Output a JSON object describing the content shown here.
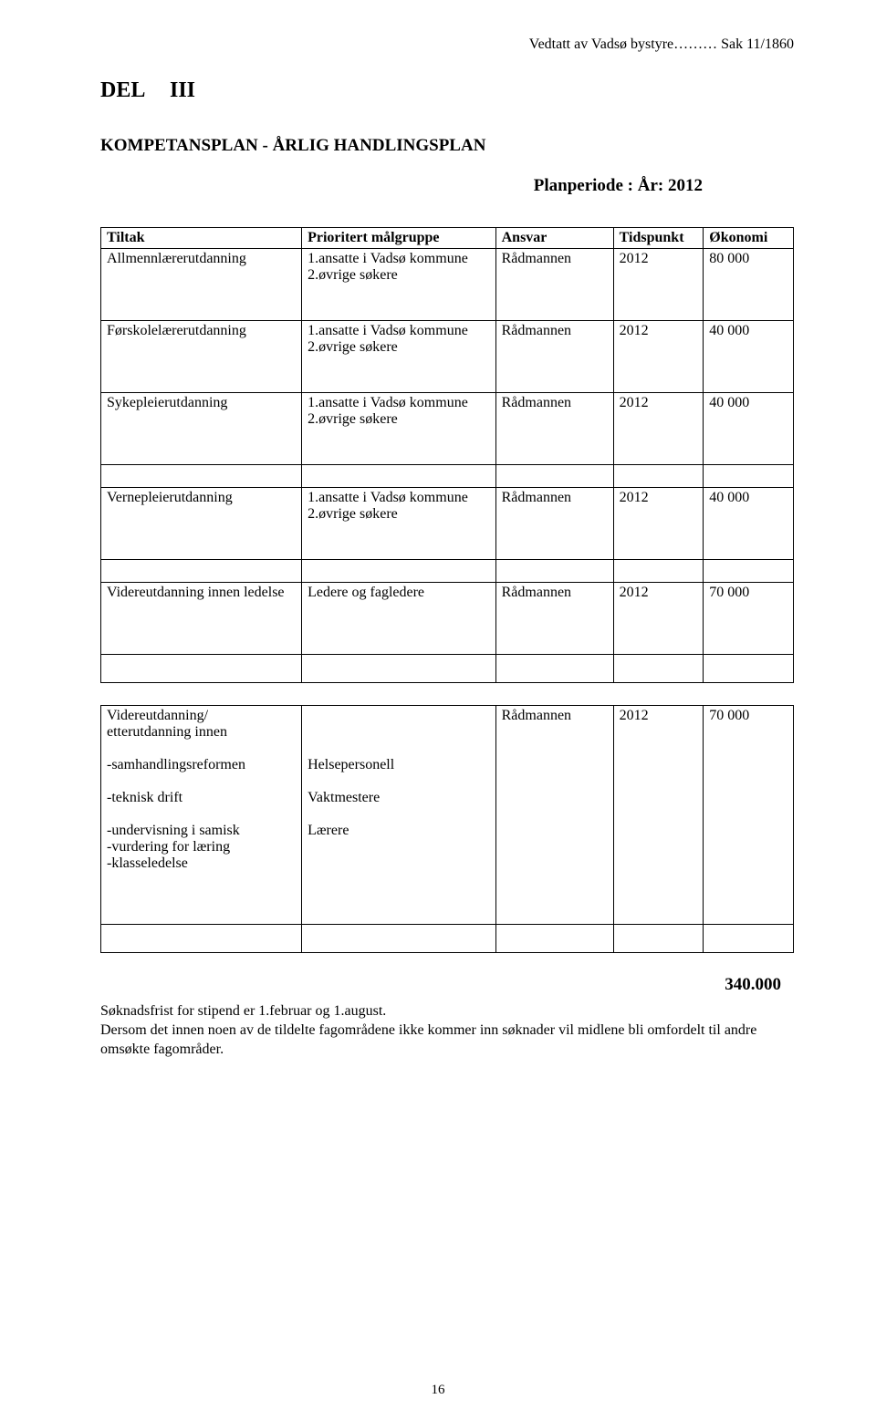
{
  "header": {
    "right": "Vedtatt av Vadsø bystyre……… Sak 11/1860"
  },
  "del": {
    "label": "DEL",
    "num": "III"
  },
  "title": "KOMPETANSPLAN - ÅRLIG HANDLINGSPLAN",
  "planperiode": "Planperiode :  År: 2012",
  "table1": {
    "headers": [
      "Tiltak",
      "Prioritert målgruppe",
      "Ansvar",
      "Tidspunkt",
      "Økonomi"
    ],
    "rows": [
      {
        "c": [
          "Allmennlærerutdanning",
          "1.ansatte i Vadsø kommune\n2.øvrige søkere",
          "Rådmannen",
          "2012",
          "80 000"
        ],
        "tall": true
      },
      {
        "c": [
          "Førskolelærerutdanning",
          "1.ansatte i Vadsø kommune\n2.øvrige søkere",
          "Rådmannen",
          "2012",
          "40 000"
        ],
        "tall": true
      },
      {
        "c": [
          "Sykepleierutdanning",
          "1.ansatte i Vadsø kommune\n2.øvrige søkere",
          "Rådmannen",
          "2012",
          "40 000"
        ],
        "tall": true
      },
      {
        "gap": true
      },
      {
        "c": [
          "Vernepleierutdanning",
          "1.ansatte i Vadsø kommune\n2.øvrige søkere",
          "Rådmannen",
          "2012",
          "40 000"
        ],
        "tall": true
      },
      {
        "gap": true
      },
      {
        "c": [
          "Videreutdanning innen ledelse",
          " Ledere og fagledere",
          "Rådmannen",
          "2012",
          "70 000"
        ],
        "tall": true
      },
      {
        "c": [
          "",
          "",
          "",
          "",
          ""
        ],
        "short": true
      }
    ]
  },
  "table2": {
    "rows": [
      {
        "c": [
          "Videreutdanning/\netterutdanning innen\n\n-samhandlingsreformen\n\n-teknisk drift\n\n-undervisning i samisk\n-vurdering for læring\n-klasseledelse",
          "\n\n\nHelsepersonell\n\nVaktmestere\n\nLærere",
          "Rådmannen",
          "2012",
          "70 000"
        ],
        "xtall": true
      },
      {
        "c": [
          "",
          "",
          "",
          "",
          ""
        ],
        "short": true
      }
    ]
  },
  "total": "340.000",
  "bodytext1": "Søknadsfrist for stipend er 1.februar og 1.august.",
  "bodytext2": "Dersom det innen noen av de tildelte fagområdene ikke kommer inn søknader vil midlene bli omfordelt til andre omsøkte fagområder.",
  "pagenum": "16"
}
